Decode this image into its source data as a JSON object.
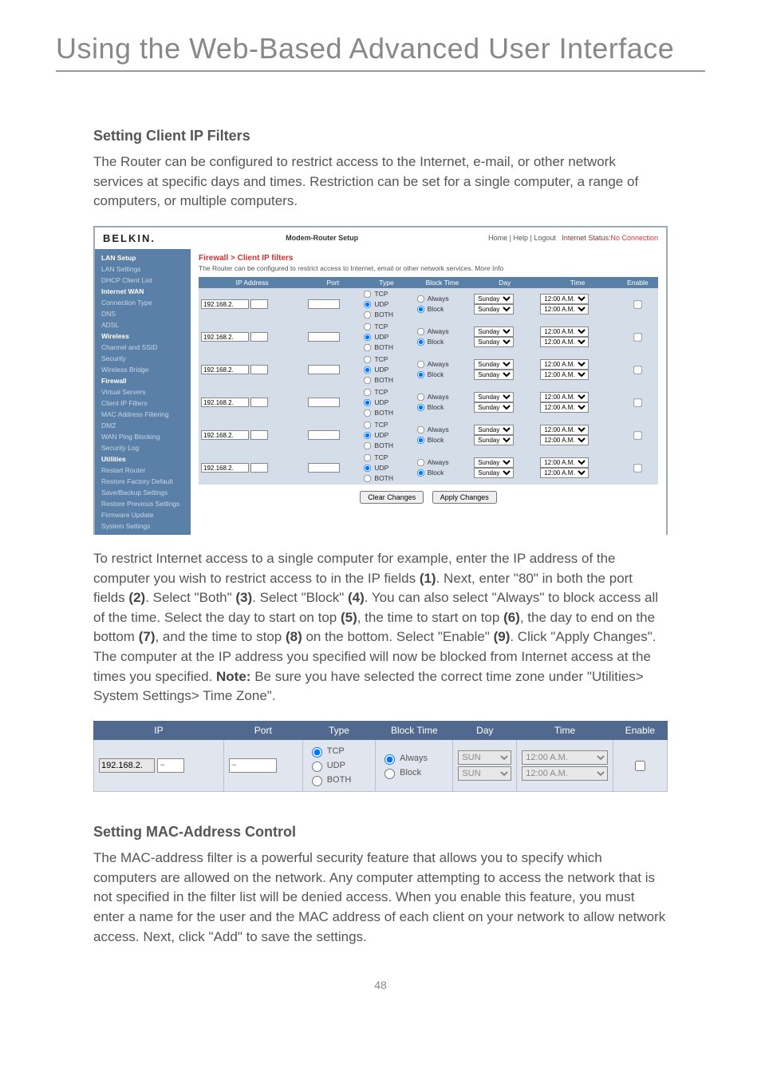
{
  "page_title": "Using the Web-Based Advanced User Interface",
  "page_number": "48",
  "section1_title": "Setting Client IP Filters",
  "section1_intro": "The Router can be configured to restrict access to the Internet, e-mail, or other network services at specific days and times. Restriction can be set for a single computer, a range of computers, or multiple computers.",
  "section1_para": "To restrict Internet access to a single computer for example, enter the IP address of the computer you wish to restrict access to in the IP fields (1). Next, enter \"80\" in both the port fields (2). Select \"Both\" (3). Select \"Block\" (4). You can also select \"Always\" to block access all of the time. Select the day to start on top (5), the time to start on top (6), the day to end on the bottom (7), and the time to stop (8) on the bottom. Select \"Enable\" (9). Click \"Apply Changes\". The computer at the IP address you specified will now be blocked from Internet access at the times you specified. Note: Be sure you have selected the correct time zone under \"Utilities> System Settings> Time Zone\".",
  "section2_title": "Setting MAC-Address Control",
  "section2_para": "The MAC-address filter is a powerful security feature that allows you to specify which computers are allowed on the network. Any computer attempting to access the network that is not specified in the filter list will be denied access. When you enable this feature, you must enter a name for the user and the MAC address of each client on your network to allow network access. Next, click \"Add\" to save the settings.",
  "shot1": {
    "brand": "BELKIN.",
    "setup_title": "Modem-Router Setup",
    "status_links": "Home | Help | Logout",
    "status_label": "Internet Status:",
    "status_value": "No Connection",
    "breadcrumb": "Firewall > Client IP filters",
    "subtext": "The Router can be configured to restrict access to Internet, email or other network services. More Info",
    "nav": [
      {
        "t": "LAN Setup",
        "g": true
      },
      {
        "t": "LAN Settings"
      },
      {
        "t": "DHCP Client List"
      },
      {
        "t": "Internet WAN",
        "g": true
      },
      {
        "t": "Connection Type"
      },
      {
        "t": "DNS"
      },
      {
        "t": "ADSL"
      },
      {
        "t": "Wireless",
        "g": true
      },
      {
        "t": "Channel and SSID"
      },
      {
        "t": "Security"
      },
      {
        "t": "Wireless Bridge"
      },
      {
        "t": "Firewall",
        "g": true
      },
      {
        "t": "Virtual Servers"
      },
      {
        "t": "Client IP Filters"
      },
      {
        "t": "MAC Address Filtering"
      },
      {
        "t": "DMZ"
      },
      {
        "t": "WAN Ping Blocking"
      },
      {
        "t": "Security Log"
      },
      {
        "t": "Utilities",
        "g": true
      },
      {
        "t": "Restart Router"
      },
      {
        "t": "Restore Factory Default"
      },
      {
        "t": "Save/Backup Settings"
      },
      {
        "t": "Restore Previous Settings"
      },
      {
        "t": "Firmware Update"
      },
      {
        "t": "System Settings"
      }
    ],
    "cols": [
      "IP Address",
      "Port",
      "Type",
      "Block Time",
      "Day",
      "Time",
      "Enable"
    ],
    "ip_prefix": "192.168.2.",
    "type_opts": [
      "TCP",
      "UDP",
      "BOTH"
    ],
    "block_opts": [
      "Always",
      "Block"
    ],
    "day": "Sunday",
    "time": "12:00 A.M.",
    "row_count": 6,
    "btn_clear": "Clear Changes",
    "btn_apply": "Apply Changes"
  },
  "shot2": {
    "cols": [
      "IP",
      "Port",
      "Type",
      "Block Time",
      "Day",
      "Time",
      "Enable"
    ],
    "ip_prefix": "192.168.2.",
    "type_opts": [
      "TCP",
      "UDP",
      "BOTH"
    ],
    "block_opts": [
      "Always",
      "Block"
    ],
    "day": "SUN",
    "time": "12:00 A.M."
  }
}
